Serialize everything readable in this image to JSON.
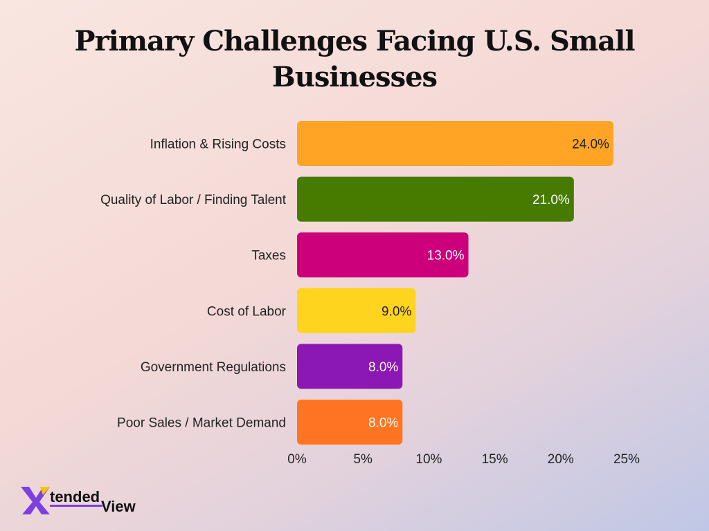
{
  "chart_data": {
    "type": "bar",
    "orientation": "horizontal",
    "title": "Primary Challenges Facing U.S. Small Businesses",
    "categories": [
      "Inflation & Rising Costs",
      "Quality of Labor / Finding Talent",
      "Taxes",
      "Cost of Labor",
      "Government Regulations",
      "Poor Sales / Market Demand"
    ],
    "values": [
      24.0,
      21.0,
      13.0,
      9.0,
      8.0,
      8.0
    ],
    "value_labels": [
      "24.0%",
      "21.0%",
      "13.0%",
      "9.0%",
      "8.0%",
      "8.0%"
    ],
    "bar_colors": [
      "#ffa424",
      "#467b00",
      "#cc007a",
      "#ffd41f",
      "#8c18b3",
      "#ff7521"
    ],
    "label_colors": [
      "#222222",
      "#ffffff",
      "#ffffff",
      "#222222",
      "#ffffff",
      "#ffffff"
    ],
    "x_ticks": [
      0,
      5,
      10,
      15,
      20,
      25
    ],
    "x_tick_labels": [
      "0%",
      "5%",
      "10%",
      "15%",
      "20%",
      "25%"
    ],
    "xlim": [
      0,
      25
    ],
    "grid": false,
    "legend": "none"
  },
  "logo": {
    "brand_text": "XtendedView",
    "colors": {
      "x_purple": "#7b3fe4",
      "x_yellow": "#f5c400",
      "text": "#111111"
    }
  }
}
